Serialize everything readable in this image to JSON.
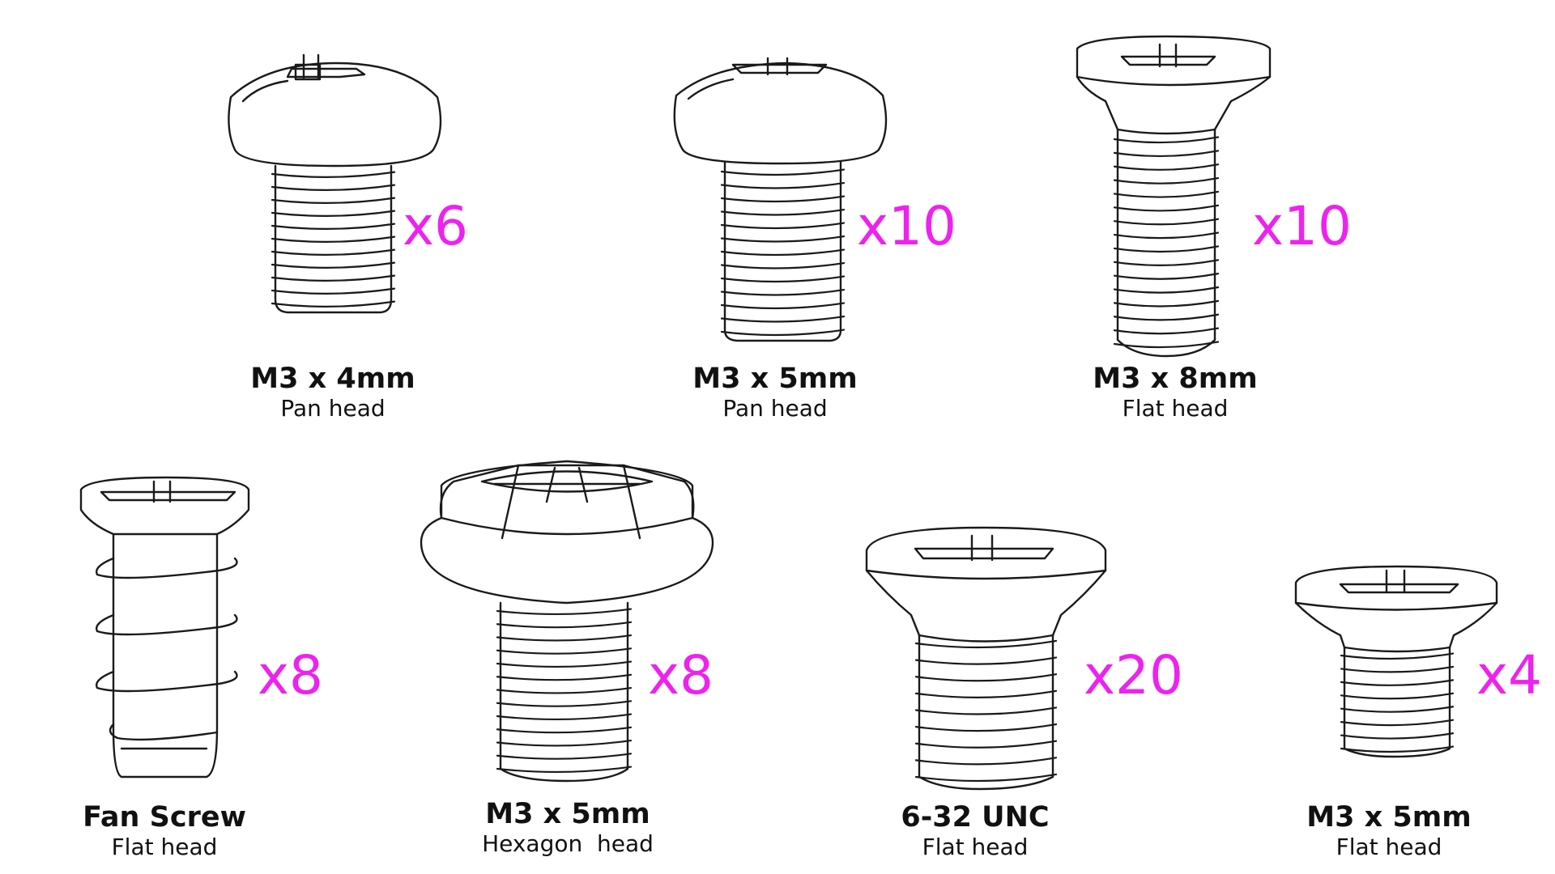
{
  "accent_color": "#ee22ee",
  "screws": [
    {
      "id": "m3x4-pan",
      "size": "M3 x 4mm",
      "head": "Pan head",
      "quantity": "x6",
      "icon": "pan-head-screw-icon"
    },
    {
      "id": "m3x5-pan",
      "size": "M3 x 5mm",
      "head": "Pan head",
      "quantity": "x10",
      "icon": "pan-head-screw-icon"
    },
    {
      "id": "m3x8-flat",
      "size": "M3 x 8mm",
      "head": "Flat head",
      "quantity": "x10",
      "icon": "flat-head-screw-icon"
    },
    {
      "id": "fan-screw",
      "size": "Fan Screw",
      "head": "Flat head",
      "quantity": "x8",
      "icon": "fan-screw-icon"
    },
    {
      "id": "m3x5-hex",
      "size": "M3 x 5mm",
      "head": "Hexagon  head",
      "quantity": "x8",
      "icon": "hex-head-screw-icon"
    },
    {
      "id": "632-unc",
      "size": "6-32 UNC",
      "head": "Flat head",
      "quantity": "x20",
      "icon": "flat-head-screw-icon"
    },
    {
      "id": "m3x5-flat",
      "size": "M3 x 5mm",
      "head": "Flat head",
      "quantity": "x4",
      "icon": "flat-head-screw-icon"
    }
  ]
}
